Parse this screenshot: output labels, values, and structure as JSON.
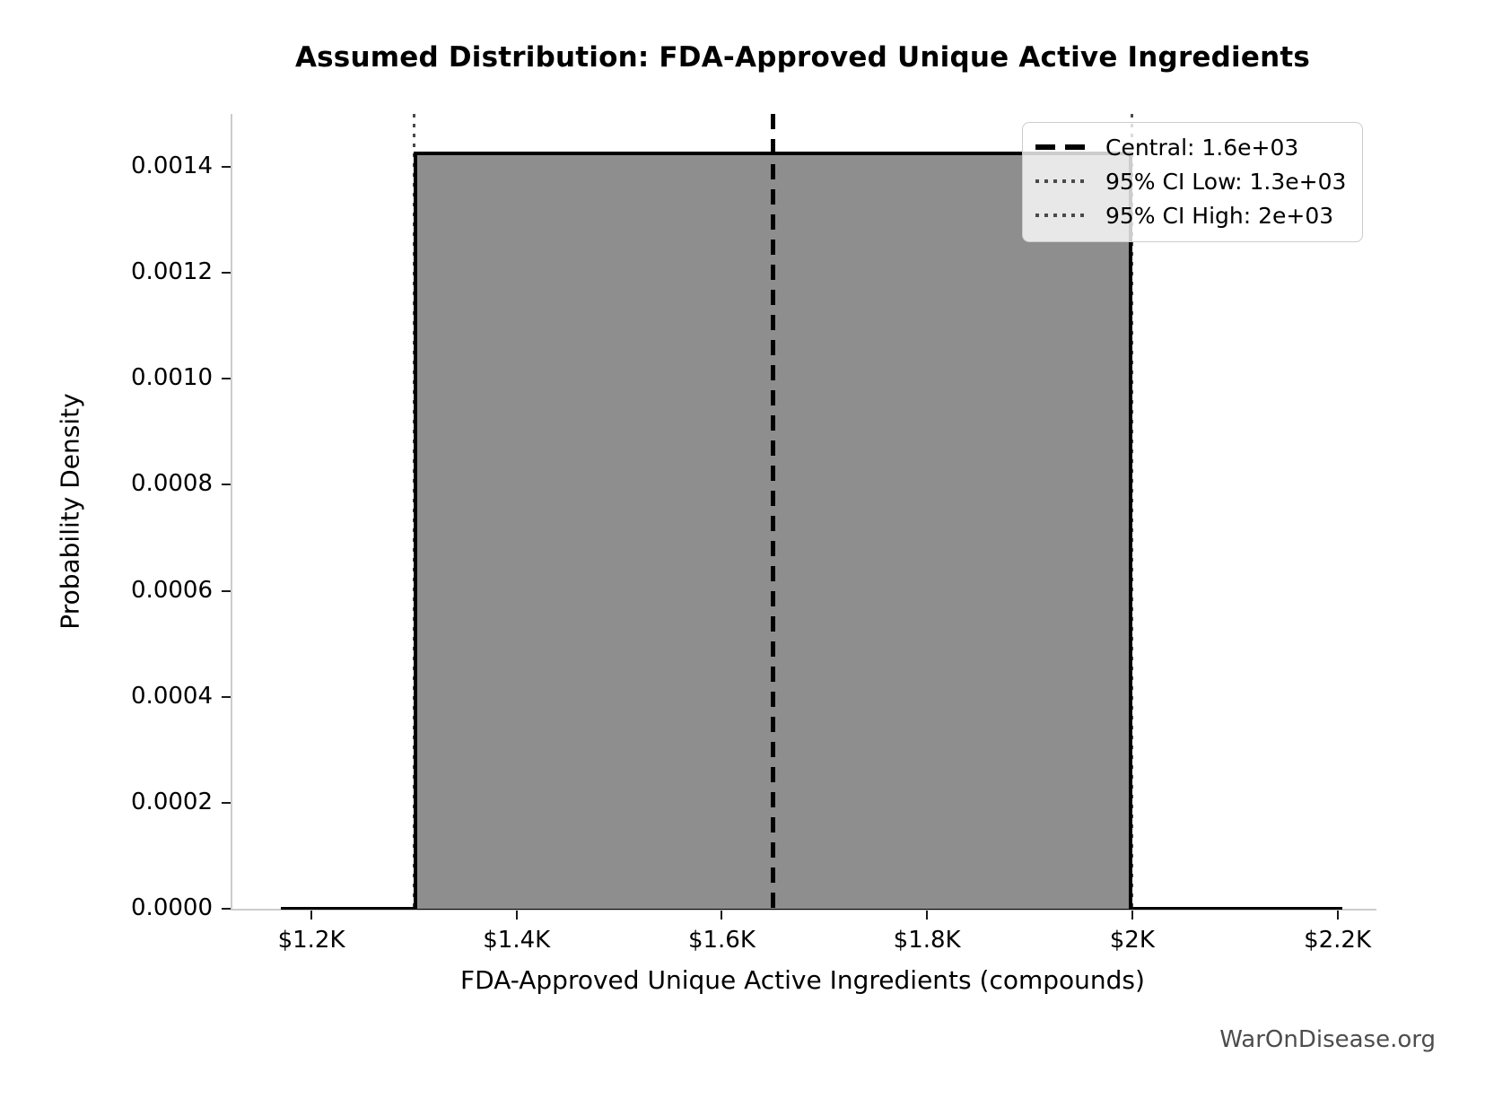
{
  "watermark": "WarOnDisease.org",
  "colors": {
    "fill": "#8e8e8e",
    "edge": "#000000",
    "spine": "#cccccc",
    "dotted_line": "#4a4a4a",
    "legend_border": "#cccccc",
    "watermark": "#4d4d4d",
    "text": "#000000",
    "background": "#ffffff"
  },
  "chart_data": {
    "type": "area",
    "title": "Assumed Distribution: FDA-Approved Unique Active Ingredients",
    "xlabel": "FDA-Approved Unique Active Ingredients (compounds)",
    "ylabel": "Probability Density",
    "distribution": "uniform",
    "central": 1650,
    "ci_low": 1300,
    "ci_high": 2000,
    "peak_density": 0.0014286,
    "pdf_x_start": 1170,
    "pdf_x_end": 2205,
    "xlim": [
      1123,
      2238
    ],
    "ylim": [
      0,
      0.0015
    ],
    "grid": false,
    "xticks": [
      {
        "value": 1200,
        "label": "$1.2K"
      },
      {
        "value": 1400,
        "label": "$1.4K"
      },
      {
        "value": 1600,
        "label": "$1.6K"
      },
      {
        "value": 1800,
        "label": "$1.8K"
      },
      {
        "value": 2000,
        "label": "$2K"
      },
      {
        "value": 2200,
        "label": "$2.2K"
      }
    ],
    "yticks": [
      {
        "value": 0.0,
        "label": "0.0000"
      },
      {
        "value": 0.0002,
        "label": "0.0002"
      },
      {
        "value": 0.0004,
        "label": "0.0004"
      },
      {
        "value": 0.0006,
        "label": "0.0006"
      },
      {
        "value": 0.0008,
        "label": "0.0008"
      },
      {
        "value": 0.001,
        "label": "0.0010"
      },
      {
        "value": 0.0012,
        "label": "0.0012"
      },
      {
        "value": 0.0014,
        "label": "0.0014"
      }
    ],
    "legend": {
      "position": "upper right",
      "entries": [
        {
          "style": "dashed",
          "label": "Central: 1.6e+03"
        },
        {
          "style": "dotted",
          "label": "95% CI Low: 1.3e+03"
        },
        {
          "style": "dotted",
          "label": "95% CI High: 2e+03"
        }
      ]
    }
  }
}
